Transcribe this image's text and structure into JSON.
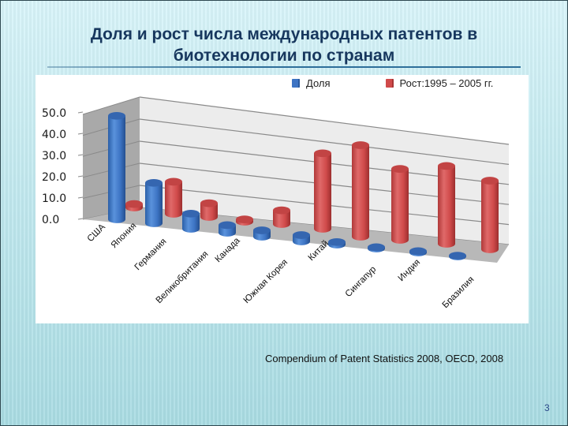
{
  "slide": {
    "title_line1": "Доля и рост числа международных патентов в",
    "title_line2": "биотехнологии по странам",
    "source": "Compendium of Patent Statistics 2008, OECD, 2008",
    "page_number": "3"
  },
  "legend": [
    {
      "label": "Доля",
      "color": "#3d74c4"
    },
    {
      "label": "Рост:1995 – 2005 гг.",
      "color": "#d04a4a"
    }
  ],
  "chart_data": {
    "type": "bar",
    "style": "3d-cylinder",
    "title": "Доля и рост числа международных патентов в биотехнологии по странам",
    "xlabel": "",
    "ylabel": "",
    "ylim": [
      0,
      50
    ],
    "yticks": [
      "0.0",
      "10.0",
      "20.0",
      "30.0",
      "40.0",
      "50.0"
    ],
    "grid": true,
    "legend_position": "top",
    "categories": [
      "США",
      "Япония",
      "Германия",
      "Великобритания",
      "Канада",
      "Южная Корея",
      "Китай",
      "Сингапур",
      "Индия",
      "Бразилия"
    ],
    "series": [
      {
        "name": "Доля",
        "color": "#3d74c4",
        "values": [
          41,
          16,
          6,
          3,
          2.5,
          2.5,
          1,
          0.5,
          0.5,
          0.3
        ]
      },
      {
        "name": "Рост:1995 – 2005 гг.",
        "color": "#d04a4a",
        "values": [
          1.5,
          14,
          6,
          1,
          6,
          33,
          40,
          31,
          34,
          30
        ]
      }
    ]
  }
}
